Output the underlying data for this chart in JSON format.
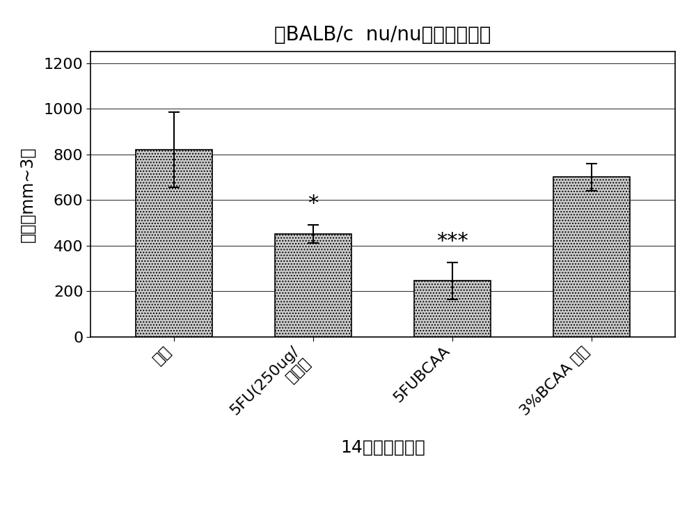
{
  "title": "在BALB/c  nu/nu中的肿瘤大小",
  "xlabel": "14天的处理条件",
  "ylabel": "体积（mm~3）",
  "categories": [
    "对照",
    "5FU(250ug/\n肿瘤）",
    "5FUBCAA",
    "3%BCAA 饮食"
  ],
  "values": [
    820,
    450,
    245,
    700
  ],
  "errors": [
    165,
    40,
    80,
    60
  ],
  "ylim": [
    0,
    1250
  ],
  "yticks": [
    0,
    200,
    400,
    600,
    800,
    1000,
    1200
  ],
  "bar_color": "#cccccc",
  "significance": [
    "",
    "*",
    "***",
    ""
  ],
  "background_color": "#ffffff",
  "bar_width": 0.55,
  "title_fontsize": 20,
  "axis_fontsize": 17,
  "tick_fontsize": 16,
  "sig_fontsize": 22,
  "xlabel_fontsize": 18
}
